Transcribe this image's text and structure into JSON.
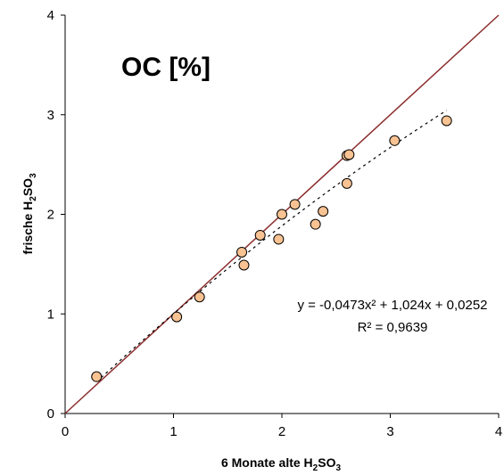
{
  "chart_data": {
    "type": "scatter",
    "title": "OC  [%]",
    "xlabel": {
      "pre": "6 Monate alte H",
      "sub1": "2",
      "mid": "SO",
      "sub2": "3"
    },
    "ylabel": {
      "pre": "frische H",
      "sub1": "2",
      "mid": "SO",
      "sub2": "3"
    },
    "xlim": [
      0,
      4
    ],
    "ylim": [
      0,
      4
    ],
    "xticks": [
      "0",
      "1",
      "2",
      "3",
      "4"
    ],
    "yticks": [
      "0",
      "1",
      "2",
      "3",
      "4"
    ],
    "grid": false,
    "points": [
      {
        "x": 0.29,
        "y": 0.37
      },
      {
        "x": 1.03,
        "y": 0.97
      },
      {
        "x": 1.24,
        "y": 1.17
      },
      {
        "x": 1.63,
        "y": 1.62
      },
      {
        "x": 1.65,
        "y": 1.49
      },
      {
        "x": 1.8,
        "y": 1.79
      },
      {
        "x": 1.97,
        "y": 1.75
      },
      {
        "x": 2.0,
        "y": 2.0
      },
      {
        "x": 2.12,
        "y": 2.1
      },
      {
        "x": 2.31,
        "y": 1.9
      },
      {
        "x": 2.38,
        "y": 2.03
      },
      {
        "x": 2.6,
        "y": 2.31
      },
      {
        "x": 2.6,
        "y": 2.59
      },
      {
        "x": 2.62,
        "y": 2.6
      },
      {
        "x": 3.04,
        "y": 2.74
      },
      {
        "x": 3.52,
        "y": 2.94
      }
    ],
    "reference_line": {
      "from": [
        0,
        0
      ],
      "to": [
        4,
        4
      ],
      "color": "#8b2c2c"
    },
    "trendline": {
      "a": -0.0473,
      "b": 1.024,
      "c": 0.0252,
      "x_range": [
        0.29,
        3.52
      ],
      "equation": "y = -0,0473x² + 1,024x + 0,0252",
      "r2": "R² = 0,9639"
    },
    "marker_fill": "#f8c292",
    "marker_stroke": "#000000"
  }
}
